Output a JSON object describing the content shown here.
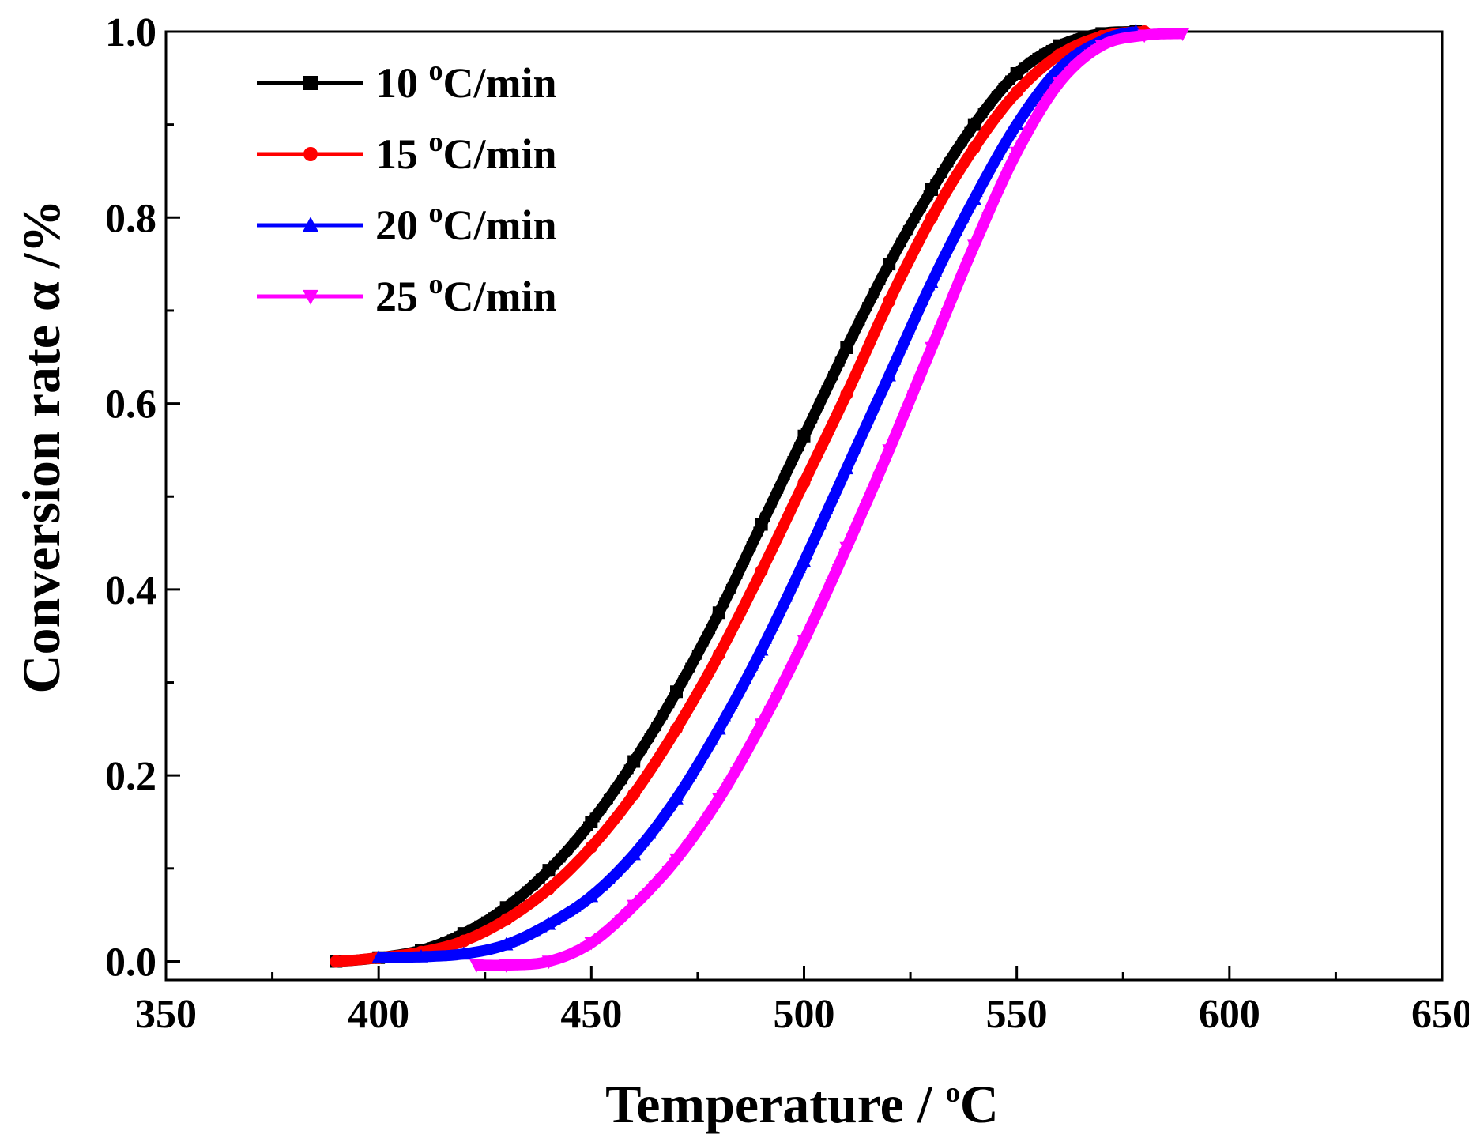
{
  "chart_data": {
    "type": "line",
    "xlabel": "Temperature / ",
    "xlabel_sup": "o",
    "xlabel_unit": "C",
    "ylabel": "Conversion rate α /%",
    "xlim": [
      350,
      650
    ],
    "ylim": [
      -0.02,
      1.0
    ],
    "x_ticks": [
      350,
      400,
      450,
      500,
      550,
      600,
      650
    ],
    "x_tick_labels": [
      "350",
      "400",
      "450",
      "500",
      "550",
      "600",
      "650"
    ],
    "y_ticks": [
      0.0,
      0.2,
      0.4,
      0.6,
      0.8,
      1.0
    ],
    "y_tick_labels": [
      "0.0",
      "0.2",
      "0.4",
      "0.6",
      "0.8",
      "1.0"
    ],
    "legend_position": "top-left",
    "series": [
      {
        "name": "10 °C/min",
        "label_value": "10",
        "label_sup": "o",
        "label_unit": "C/min",
        "color": "#000000",
        "marker": "square",
        "x": [
          390,
          400,
          410,
          420,
          430,
          440,
          450,
          460,
          470,
          480,
          490,
          500,
          510,
          520,
          530,
          540,
          550,
          560,
          570,
          578
        ],
        "y": [
          0.0,
          0.004,
          0.012,
          0.03,
          0.058,
          0.098,
          0.15,
          0.215,
          0.29,
          0.375,
          0.47,
          0.565,
          0.66,
          0.75,
          0.83,
          0.9,
          0.955,
          0.985,
          0.998,
          1.0
        ]
      },
      {
        "name": "15 °C/min",
        "label_value": "15",
        "label_sup": "o",
        "label_unit": "C/min",
        "color": "#ff0000",
        "marker": "circle",
        "x": [
          390,
          400,
          410,
          420,
          430,
          440,
          450,
          460,
          470,
          480,
          490,
          500,
          510,
          520,
          530,
          540,
          550,
          560,
          570,
          580
        ],
        "y": [
          0.0,
          0.004,
          0.01,
          0.022,
          0.045,
          0.078,
          0.123,
          0.18,
          0.25,
          0.33,
          0.42,
          0.515,
          0.61,
          0.71,
          0.8,
          0.875,
          0.935,
          0.975,
          0.995,
          1.0
        ]
      },
      {
        "name": "20 °C/min",
        "label_value": "20",
        "label_sup": "o",
        "label_unit": "C/min",
        "color": "#0000ff",
        "marker": "triangle-up",
        "x": [
          400,
          410,
          420,
          430,
          440,
          450,
          460,
          470,
          480,
          490,
          500,
          510,
          520,
          530,
          540,
          550,
          560,
          570,
          578
        ],
        "y": [
          0.004,
          0.005,
          0.008,
          0.018,
          0.04,
          0.07,
          0.115,
          0.175,
          0.25,
          0.335,
          0.43,
          0.53,
          0.63,
          0.73,
          0.82,
          0.9,
          0.96,
          0.99,
          1.0
        ]
      },
      {
        "name": "25 °C/min",
        "label_value": "25",
        "label_sup": "o",
        "label_unit": "C/min",
        "color": "#ff00ff",
        "marker": "triangle-down",
        "x": [
          423,
          430,
          440,
          450,
          460,
          470,
          480,
          490,
          500,
          510,
          520,
          530,
          540,
          550,
          560,
          570,
          580,
          589
        ],
        "y": [
          -0.004,
          -0.004,
          0.0,
          0.02,
          0.06,
          0.11,
          0.175,
          0.255,
          0.345,
          0.445,
          0.55,
          0.66,
          0.77,
          0.87,
          0.945,
          0.985,
          0.996,
          0.998
        ]
      }
    ]
  }
}
